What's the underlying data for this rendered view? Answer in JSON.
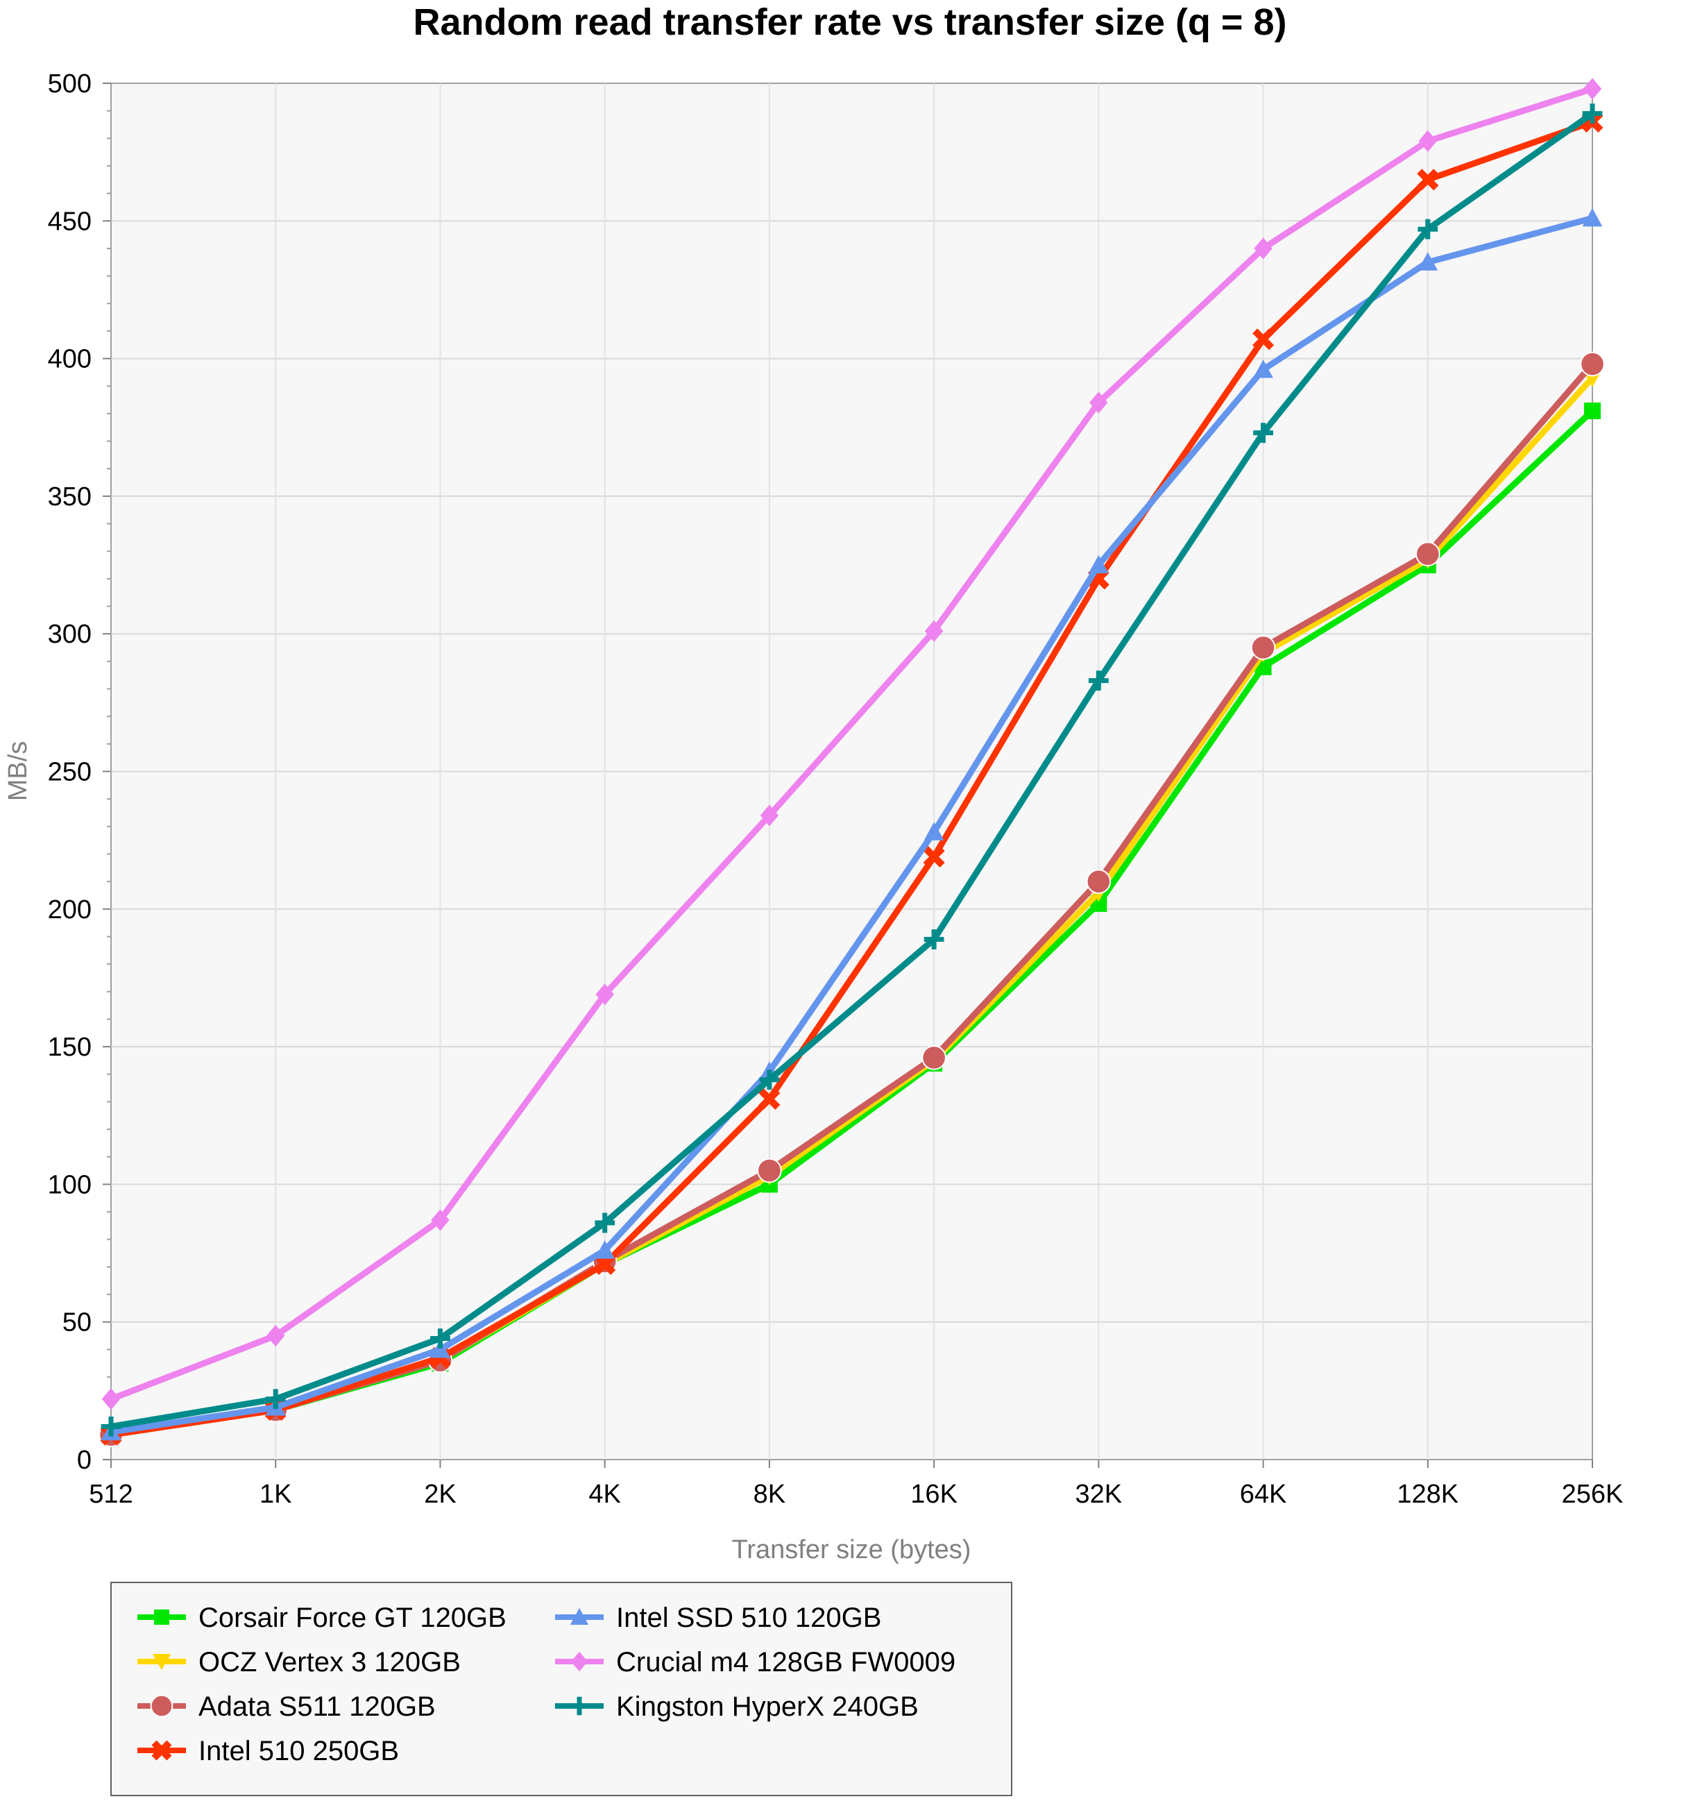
{
  "chart_data": {
    "type": "line",
    "title": "Random read transfer rate vs transfer size (q = 8)",
    "xlabel": "Transfer size (bytes)",
    "ylabel": "MB/s",
    "categories": [
      "512",
      "1K",
      "2K",
      "4K",
      "8K",
      "16K",
      "32K",
      "64K",
      "128K",
      "256K"
    ],
    "ylim": [
      0,
      500
    ],
    "yticks": [
      0,
      50,
      100,
      150,
      200,
      250,
      300,
      350,
      400,
      450,
      500
    ],
    "grid": true,
    "legend_position": "bottom",
    "series": [
      {
        "name": "Corsair Force GT 120GB",
        "color": "#00e600",
        "marker": "square",
        "values": [
          9,
          18,
          35,
          71,
          100,
          144,
          202,
          288,
          325,
          381
        ]
      },
      {
        "name": "OCZ Vertex 3 120GB",
        "color": "#ffd700",
        "marker": "triangle-down",
        "values": [
          9,
          18,
          36,
          71,
          103,
          145,
          206,
          293,
          327,
          393
        ]
      },
      {
        "name": "Adata S511 120GB",
        "color": "#cd5c5c",
        "marker": "circle",
        "values": [
          9,
          18,
          36,
          72,
          105,
          146,
          210,
          295,
          329,
          398
        ]
      },
      {
        "name": "Intel 510 250GB",
        "color": "#ff3300",
        "marker": "x",
        "values": [
          9,
          18,
          37,
          71,
          131,
          219,
          320,
          407,
          465,
          486
        ]
      },
      {
        "name": "Intel SSD 510 120GB",
        "color": "#6495ed",
        "marker": "triangle-up",
        "values": [
          10,
          19,
          40,
          76,
          141,
          228,
          325,
          396,
          435,
          451
        ]
      },
      {
        "name": "Crucial m4 128GB FW0009",
        "color": "#ee82ee",
        "marker": "diamond",
        "values": [
          22,
          45,
          87,
          169,
          234,
          301,
          384,
          440,
          479,
          498
        ]
      },
      {
        "name": "Kingston HyperX 240GB",
        "color": "#008b8b",
        "marker": "plus",
        "values": [
          12,
          22,
          44,
          86,
          138,
          189,
          283,
          373,
          447,
          489
        ]
      }
    ]
  }
}
